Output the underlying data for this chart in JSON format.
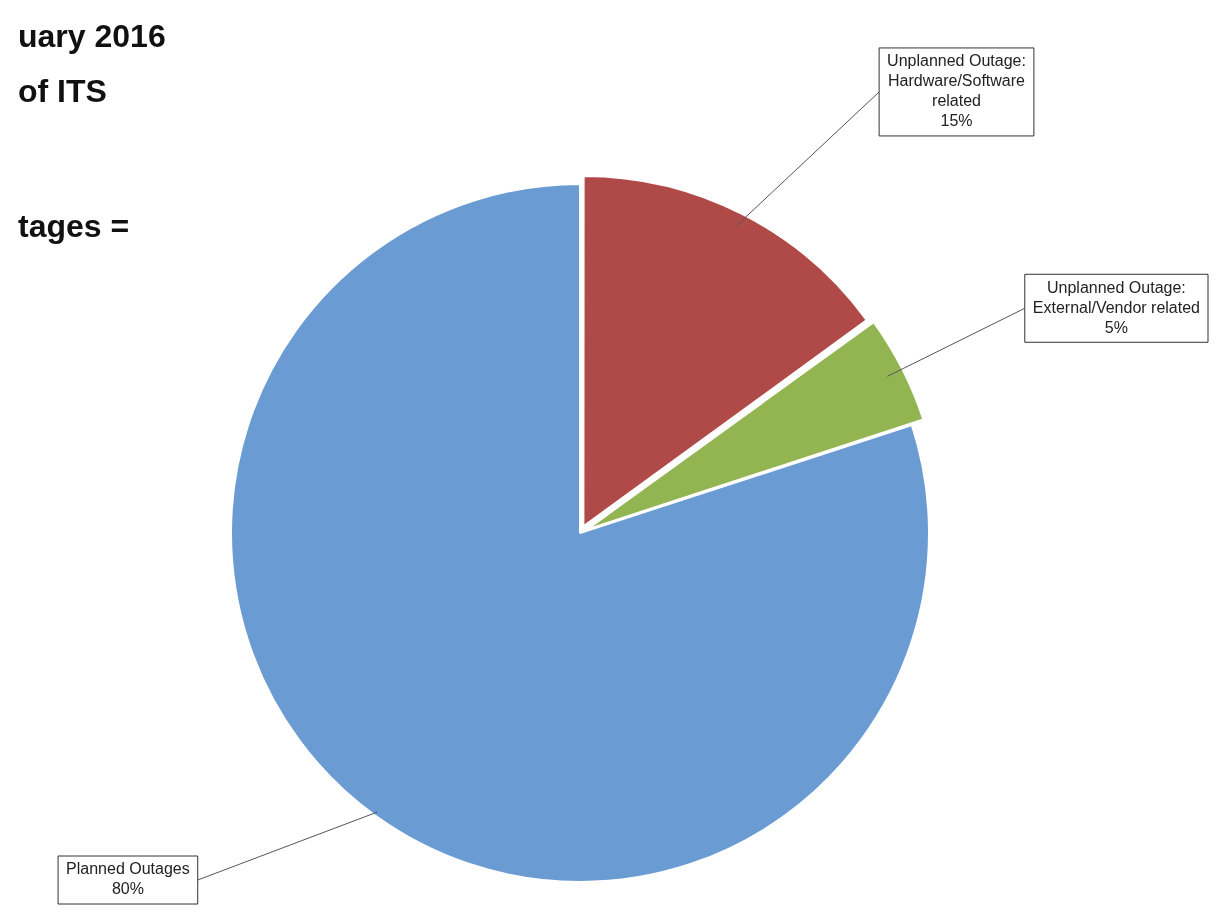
{
  "chart_data": {
    "type": "pie",
    "annotations": [
      "uary 2016",
      "of ITS",
      "tages ="
    ],
    "categories": [
      "Unplanned Outage: Hardware/Software related",
      "Unplanned Outage: External/Vendor related",
      "Planned Outages"
    ],
    "values": [
      15,
      5,
      80
    ],
    "colors": [
      "#b04a48",
      "#92b552",
      "#6a9bd3"
    ],
    "value_labels": [
      "15%",
      "5%",
      "80%"
    ],
    "legend": false
  }
}
